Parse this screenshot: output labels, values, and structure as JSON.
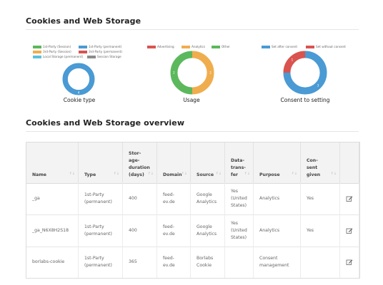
{
  "sections": {
    "cookies_title": "Cookies and Web Storage",
    "overview_title": "Cookies and Web Storage overview"
  },
  "charts": [
    {
      "label": "Cookie type",
      "legend": [
        "1st-Party (Session)",
        "1st-Party (permanent)",
        "3rd-Party (Session)",
        "3rd-Party (permanent)",
        "Local Storage (permanent)",
        "Session Storage"
      ],
      "legend_colors": [
        "#5cb85c",
        "#4a9ad4",
        "#f0ad4e",
        "#d9534f",
        "#5bc0de",
        "#8c8c8c"
      ],
      "slices": [
        {
          "value": 4,
          "color": "#4a9ad4",
          "label": "4"
        }
      ]
    },
    {
      "label": "Usage",
      "legend": [
        "Advertising",
        "Analytics",
        "Other"
      ],
      "legend_colors": [
        "#d9534f",
        "#f0ad4e",
        "#5cb85c"
      ],
      "slices": [
        {
          "value": 2,
          "color": "#f0ad4e",
          "label": "2"
        },
        {
          "value": 2,
          "color": "#5cb85c",
          "label": "2"
        }
      ]
    },
    {
      "label": "Consent to setting",
      "legend": [
        "Set after consent",
        "Set without consent"
      ],
      "legend_colors": [
        "#4a9ad4",
        "#d9534f"
      ],
      "slices": [
        {
          "value": 3,
          "color": "#4a9ad4",
          "label": "3"
        },
        {
          "value": 1,
          "color": "#d9534f",
          "label": "1"
        }
      ]
    }
  ],
  "table": {
    "headers": [
      "Name",
      "Type",
      "Stor-\nage-\nduration\n(days)",
      "Domain",
      "Source",
      "Data-\ntrans-\nfer",
      "Purpose",
      "Con-\nsent\ngiven",
      ""
    ],
    "rows": [
      [
        "_ga",
        "1st-Party\n(permanent)",
        "400",
        "feed-\nev.de",
        "Google\nAnalytics",
        "Yes\n(United\nStates)",
        "Analytics",
        "Yes"
      ],
      [
        "_ga_N6X8H2S18",
        "1st-Party\n(permanent)",
        "400",
        "feed-\nev.de",
        "Google\nAnalytics",
        "Yes\n(United\nStates)",
        "Analytics",
        "Yes"
      ],
      [
        "borlabs-cookie",
        "1st-Party\n(permanent)",
        "365",
        "feed-\nev.de",
        "Borlabs\nCookie",
        "",
        "Consent\nmanagement",
        ""
      ]
    ]
  }
}
